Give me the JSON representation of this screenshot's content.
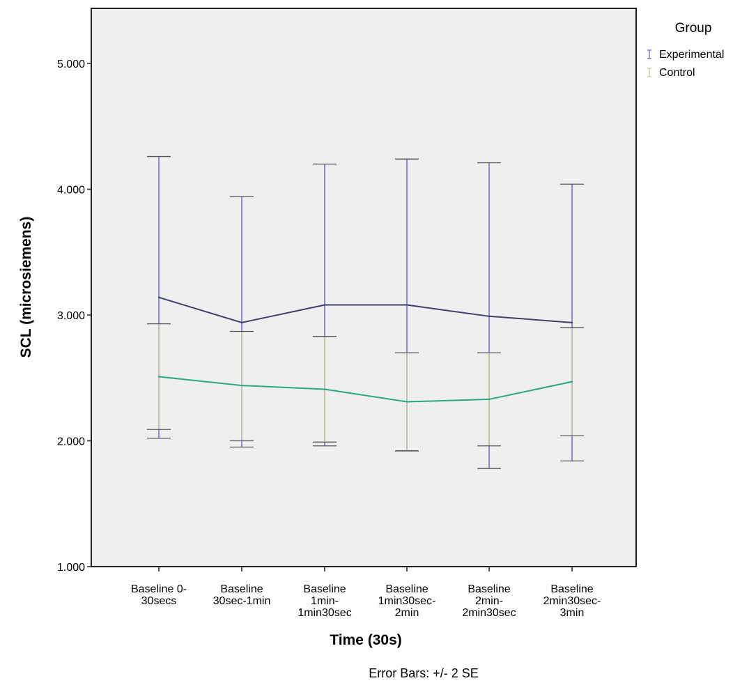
{
  "chart_data": {
    "type": "line",
    "xlabel": "Time (30s)",
    "ylabel": "SCL (microsiemens)",
    "ylim": [
      1.0,
      5.4
    ],
    "yticks": [
      {
        "value": 1.0,
        "label": "1.000"
      },
      {
        "value": 2.0,
        "label": "2.000"
      },
      {
        "value": 3.0,
        "label": "3.000"
      },
      {
        "value": 4.0,
        "label": "4.000"
      },
      {
        "value": 5.0,
        "label": "5.000"
      }
    ],
    "categories": [
      [
        "Baseline 0-",
        "30secs"
      ],
      [
        "Baseline",
        "30sec-1min"
      ],
      [
        "Baseline",
        "1min-",
        "1min30sec"
      ],
      [
        "Baseline",
        "1min30sec-",
        "2min"
      ],
      [
        "Baseline",
        "2min-",
        "2min30sec"
      ],
      [
        "Baseline",
        "2min30sec-",
        "3min"
      ]
    ],
    "legend": {
      "title": "Group",
      "position": "top-right"
    },
    "footnote": "Error Bars: +/- 2 SE",
    "grid": false,
    "series": [
      {
        "name": "Experimental",
        "color": "#3f3f6e",
        "error_color": "#6b6bd6",
        "values": [
          3.14,
          2.94,
          3.08,
          3.08,
          2.99,
          2.94
        ],
        "lower": [
          2.02,
          1.95,
          1.96,
          1.92,
          1.78,
          1.84
        ],
        "upper": [
          4.26,
          3.94,
          4.2,
          4.24,
          4.21,
          4.04
        ]
      },
      {
        "name": "Control",
        "color": "#2aa884",
        "error_color": "#c9c99a",
        "values": [
          2.51,
          2.44,
          2.41,
          2.31,
          2.33,
          2.47
        ],
        "lower": [
          2.09,
          2.0,
          1.99,
          1.92,
          1.96,
          2.04
        ],
        "upper": [
          2.93,
          2.87,
          2.83,
          2.7,
          2.7,
          2.9
        ]
      }
    ]
  }
}
